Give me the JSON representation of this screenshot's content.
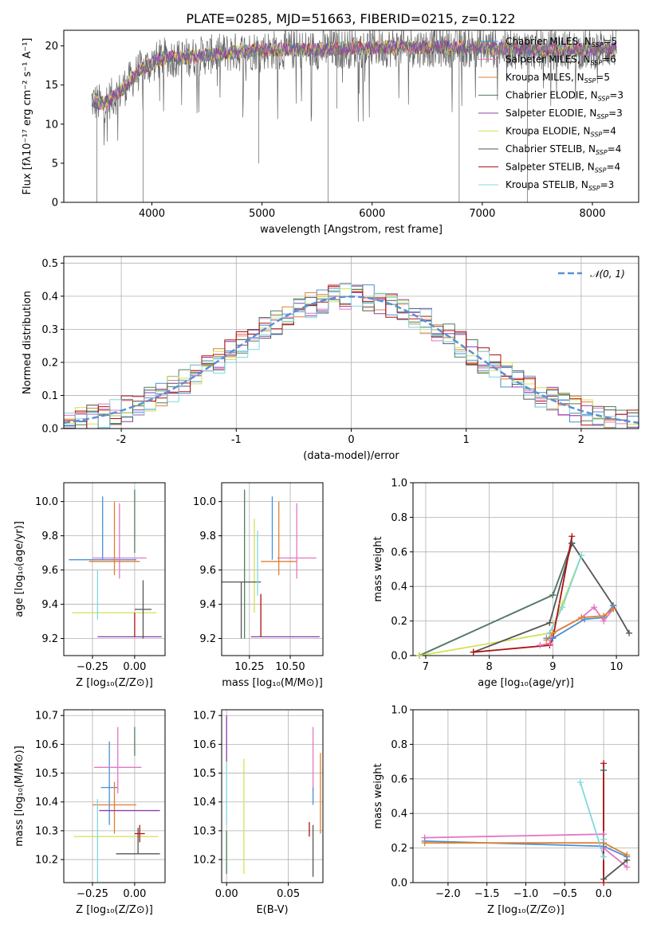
{
  "title": "PLATE=0285, MJD=51663, FIBERID=0215, z=0.122",
  "colors": {
    "chabrier_miles": "#4a90d9",
    "salpeter_miles": "#e377c2",
    "kroupa_miles": "#e08030",
    "chabrier_elodie": "#4f7f5f",
    "salpeter_elodie": "#8e3fa8",
    "kroupa_elodie": "#d4e157",
    "chabrier_stelib": "#555555",
    "salpeter_stelib": "#b01010",
    "kroupa_stelib": "#7fd8e0",
    "normal": "#5b8fd6"
  },
  "chart_data": [
    {
      "id": "spectrum",
      "type": "line",
      "xlabel": "wavelength [Angstrom, rest frame]",
      "ylabel": "Flux [fλ10⁻¹⁷ erg cm⁻² s⁻¹ A⁻¹]",
      "xlim": [
        3200,
        8420
      ],
      "ylim": [
        0,
        22
      ],
      "xticks": [
        4000,
        5000,
        6000,
        7000,
        8000
      ],
      "yticks": [
        0,
        5,
        10,
        15,
        20
      ],
      "grid": false,
      "legend_position": "right",
      "legend": [
        {
          "label": "Chabrier MILES, N",
          "sub": "SSP",
          "eq": "=5",
          "color_key": "chabrier_miles"
        },
        {
          "label": "Salpeter MILES, N",
          "sub": "SSP",
          "eq": "=6",
          "color_key": "salpeter_miles"
        },
        {
          "label": "Kroupa MILES, N",
          "sub": "SSP",
          "eq": "=5",
          "color_key": "kroupa_miles"
        },
        {
          "label": "Chabrier ELODIE, N",
          "sub": "SSP",
          "eq": "=3",
          "color_key": "chabrier_elodie"
        },
        {
          "label": "Salpeter ELODIE, N",
          "sub": "SSP",
          "eq": "=3",
          "color_key": "salpeter_elodie"
        },
        {
          "label": "Kroupa ELODIE, N",
          "sub": "SSP",
          "eq": "=4",
          "color_key": "kroupa_elodie"
        },
        {
          "label": "Chabrier STELIB, N",
          "sub": "SSP",
          "eq": "=4",
          "color_key": "chabrier_stelib"
        },
        {
          "label": "Salpeter STELIB, N",
          "sub": "SSP",
          "eq": "=4",
          "color_key": "salpeter_stelib"
        },
        {
          "label": "Kroupa STELIB, N",
          "sub": "SSP",
          "eq": "=3",
          "color_key": "kroupa_stelib"
        }
      ],
      "continuum": {
        "x": [
          3450,
          3550,
          3700,
          3900,
          4100,
          4300,
          4600,
          5000,
          5500,
          6000,
          6500,
          7000,
          7500,
          8000,
          8200
        ],
        "y": [
          13,
          12.5,
          14,
          17,
          18.5,
          18.5,
          19,
          19.5,
          19.5,
          19.8,
          19.8,
          19.8,
          19.5,
          19.5,
          19.8
        ]
      },
      "drops": [
        {
          "x": 3500,
          "y": 0
        },
        {
          "x": 3920,
          "y": 0
        },
        {
          "x": 4970,
          "y": 5
        },
        {
          "x": 5600,
          "y": 0
        },
        {
          "x": 5680,
          "y": 12
        },
        {
          "x": 6790,
          "y": 0
        },
        {
          "x": 7410,
          "y": 0
        }
      ]
    },
    {
      "id": "residuals",
      "type": "histogram",
      "xlabel": "(data-model)/error",
      "ylabel": "Normed distribution",
      "xlim": [
        -2.5,
        2.5
      ],
      "ylim": [
        0,
        0.52
      ],
      "xticks": [
        -2,
        -1,
        0,
        1,
        2
      ],
      "yticks": [
        0.0,
        0.1,
        0.2,
        0.3,
        0.4,
        0.5
      ],
      "grid": true,
      "legend_position": "upper right",
      "normal_label": "𝒩(0, 1)",
      "bin_width": 0.1
    },
    {
      "id": "age_vs_Z",
      "type": "errorbar",
      "xlabel": "Z [log₁₀(Z/Z⊙)]",
      "ylabel": "age  [log₁₀(age/yr)]",
      "xlim": [
        -0.42,
        0.18
      ],
      "ylim": [
        9.1,
        10.11
      ],
      "xticks": [
        -0.25,
        0.0
      ],
      "xticklabels": [
        "−0.25",
        "0.00"
      ],
      "yticks": [
        9.2,
        9.4,
        9.6,
        9.8,
        10.0
      ],
      "grid": true,
      "points": [
        {
          "c": "chabrier_miles",
          "x": -0.19,
          "xerr": 0.2,
          "y": 9.66,
          "yerr": [
            0.0,
            0.37
          ]
        },
        {
          "c": "salpeter_miles",
          "x": -0.09,
          "xerr": 0.16,
          "y": 9.67,
          "yerr": [
            0.12,
            0.32
          ]
        },
        {
          "c": "kroupa_miles",
          "x": -0.12,
          "xerr": 0.15,
          "y": 9.65,
          "yerr": [
            0.08,
            0.35
          ]
        },
        {
          "c": "chabrier_elodie",
          "x": 0.0,
          "xerr": 0.0,
          "y": 9.8,
          "yerr": [
            0.1,
            0.27
          ]
        },
        {
          "c": "salpeter_elodie",
          "x": -0.03,
          "xerr": 0.19,
          "y": 9.21,
          "yerr": [
            0.0,
            0.0
          ]
        },
        {
          "c": "kroupa_elodie",
          "x": -0.12,
          "xerr": 0.25,
          "y": 9.35,
          "yerr": [
            0.0,
            0.0
          ]
        },
        {
          "c": "chabrier_stelib",
          "x": 0.05,
          "xerr": 0.05,
          "y": 9.37,
          "yerr": [
            0.17,
            0.17
          ]
        },
        {
          "c": "salpeter_stelib",
          "x": 0.0,
          "xerr": 0.0,
          "y": 9.22,
          "yerr": [
            0.01,
            0.13
          ]
        },
        {
          "c": "kroupa_stelib",
          "x": -0.22,
          "xerr": 0.0,
          "y": 9.6,
          "yerr": [
            0.29,
            0.0
          ]
        }
      ]
    },
    {
      "id": "age_vs_mass",
      "type": "errorbar",
      "xlabel": "mass [log₁₀(M/M⊙)]",
      "ylabel": "",
      "xlim": [
        10.08,
        10.7
      ],
      "ylim": [
        9.1,
        10.11
      ],
      "xticks": [
        10.25,
        10.5
      ],
      "xticklabels": [
        "10.25",
        "10.50"
      ],
      "yticks": [
        9.2,
        9.4,
        9.6,
        9.8,
        10.0
      ],
      "grid": true,
      "points": [
        {
          "c": "chabrier_miles",
          "x": 10.39,
          "xerr": 0.0,
          "y": 9.66,
          "yerr": [
            0.0,
            0.37
          ]
        },
        {
          "c": "salpeter_miles",
          "x": 10.54,
          "xerr": 0.12,
          "y": 9.67,
          "yerr": [
            0.12,
            0.32
          ]
        },
        {
          "c": "kroupa_miles",
          "x": 10.43,
          "xerr": 0.11,
          "y": 9.65,
          "yerr": [
            0.08,
            0.35
          ]
        },
        {
          "c": "chabrier_elodie",
          "x": 10.22,
          "xerr": 0.0,
          "y": 9.8,
          "yerr": [
            0.6,
            0.27
          ]
        },
        {
          "c": "salpeter_elodie",
          "x": 10.47,
          "xerr": 0.21,
          "y": 9.21,
          "yerr": [
            0.0,
            0.0
          ]
        },
        {
          "c": "kroupa_elodie",
          "x": 10.28,
          "xerr": 0.0,
          "y": 9.35,
          "yerr": [
            0.0,
            0.55
          ]
        },
        {
          "c": "chabrier_stelib",
          "x": 10.2,
          "xerr": 0.12,
          "y": 9.53,
          "yerr": [
            0.33,
            0.0
          ]
        },
        {
          "c": "salpeter_stelib",
          "x": 10.32,
          "xerr": 0.0,
          "y": 9.21,
          "yerr": [
            0.0,
            0.25
          ]
        },
        {
          "c": "kroupa_stelib",
          "x": 10.3,
          "xerr": 0.0,
          "y": 9.7,
          "yerr": [
            0.25,
            0.13
          ]
        }
      ]
    },
    {
      "id": "weight_vs_age",
      "type": "line",
      "xlabel": "age  [log₁₀(age/yr)]",
      "ylabel": "mass weight",
      "xlim": [
        6.8,
        10.35
      ],
      "ylim": [
        0,
        1.0
      ],
      "xticks": [
        7,
        8,
        9,
        10
      ],
      "yticks": [
        0.0,
        0.2,
        0.4,
        0.6,
        0.8,
        1.0
      ],
      "grid": true,
      "series": [
        {
          "c": "salpeter_elodie",
          "x": [
            6.9,
            9.0,
            9.3
          ],
          "y": [
            0.0,
            0.35,
            0.65
          ]
        },
        {
          "c": "chabrier_elodie",
          "x": [
            6.9,
            9.0,
            9.3
          ],
          "y": [
            0.0,
            0.35,
            0.65
          ]
        },
        {
          "c": "kroupa_elodie",
          "x": [
            6.9,
            8.95,
            9.15,
            9.45
          ],
          "y": [
            0.0,
            0.13,
            0.3,
            0.58
          ]
        },
        {
          "c": "kroupa_stelib",
          "x": [
            8.95,
            9.15,
            9.45
          ],
          "y": [
            0.13,
            0.28,
            0.58
          ]
        },
        {
          "c": "chabrier_stelib",
          "x": [
            7.75,
            8.95,
            9.3,
            9.95,
            10.2
          ],
          "y": [
            0.02,
            0.19,
            0.65,
            0.29,
            0.13
          ]
        },
        {
          "c": "salpeter_stelib",
          "x": [
            7.75,
            8.95,
            9.0,
            9.3
          ],
          "y": [
            0.02,
            0.06,
            0.1,
            0.69
          ]
        },
        {
          "c": "chabrier_miles",
          "x": [
            8.9,
            9.0,
            9.5,
            9.8,
            9.95
          ],
          "y": [
            0.1,
            0.1,
            0.21,
            0.22,
            0.29
          ]
        },
        {
          "c": "salpeter_miles",
          "x": [
            8.8,
            8.95,
            9.0,
            9.45,
            9.65,
            9.8,
            9.95
          ],
          "y": [
            0.06,
            0.07,
            0.13,
            0.22,
            0.28,
            0.2,
            0.27
          ]
        },
        {
          "c": "kroupa_miles",
          "x": [
            8.9,
            9.0,
            9.45,
            9.8,
            9.95
          ],
          "y": [
            0.09,
            0.13,
            0.22,
            0.23,
            0.27
          ]
        }
      ]
    },
    {
      "id": "mass_vs_Z",
      "type": "errorbar",
      "xlabel": "Z [log₁₀(Z/Z⊙)]",
      "ylabel": "mass [log₁₀(M/M⊙)]",
      "xlim": [
        -0.42,
        0.18
      ],
      "ylim": [
        10.12,
        10.72
      ],
      "xticks": [
        -0.25,
        0.0
      ],
      "xticklabels": [
        "−0.25",
        "0.00"
      ],
      "yticks": [
        10.2,
        10.3,
        10.4,
        10.5,
        10.6,
        10.7
      ],
      "grid": true,
      "points": [
        {
          "c": "chabrier_miles",
          "x": -0.15,
          "xerr": 0.05,
          "y": 10.45,
          "yerr": [
            0.13,
            0.16
          ]
        },
        {
          "c": "salpeter_miles",
          "x": -0.1,
          "xerr": 0.14,
          "y": 10.52,
          "yerr": [
            0.09,
            0.14
          ]
        },
        {
          "c": "kroupa_miles",
          "x": -0.12,
          "xerr": 0.13,
          "y": 10.39,
          "yerr": [
            0.1,
            0.08
          ]
        },
        {
          "c": "chabrier_elodie",
          "x": 0.0,
          "xerr": 0.0,
          "y": 10.61,
          "yerr": [
            0.05,
            0.05
          ]
        },
        {
          "c": "salpeter_elodie",
          "x": -0.03,
          "xerr": 0.18,
          "y": 10.37,
          "yerr": [
            0.0,
            0.0
          ]
        },
        {
          "c": "kroupa_elodie",
          "x": -0.11,
          "xerr": 0.25,
          "y": 10.28,
          "yerr": [
            0.0,
            0.0
          ]
        },
        {
          "c": "chabrier_stelib",
          "x": 0.02,
          "xerr": 0.13,
          "y": 10.22,
          "yerr": [
            0.0,
            0.09
          ]
        },
        {
          "c": "salpeter_stelib",
          "x": 0.03,
          "xerr": 0.03,
          "y": 10.29,
          "yerr": [
            0.03,
            0.03
          ]
        },
        {
          "c": "kroupa_stelib",
          "x": -0.22,
          "xerr": 0.0,
          "y": 10.36,
          "yerr": [
            0.24,
            0.05
          ]
        }
      ]
    },
    {
      "id": "mass_vs_EBV",
      "type": "errorbar",
      "xlabel": "E(B-V)",
      "ylabel": "",
      "xlim": [
        -0.004,
        0.078
      ],
      "ylim": [
        10.12,
        10.72
      ],
      "xticks": [
        0.0,
        0.05
      ],
      "xticklabels": [
        "0.00",
        "0.05"
      ],
      "yticks": [
        10.2,
        10.3,
        10.4,
        10.5,
        10.6,
        10.7
      ],
      "grid": true,
      "points": [
        {
          "c": "salpeter_elodie",
          "x": 0.0,
          "xerr": 0.0,
          "y": 10.6,
          "yerr": [
            0.06,
            0.1
          ]
        },
        {
          "c": "chabrier_elodie",
          "x": 0.0,
          "xerr": 0.0,
          "y": 10.2,
          "yerr": [
            0.05,
            0.1
          ]
        },
        {
          "c": "kroupa_stelib",
          "x": 0.0,
          "xerr": 0.0,
          "y": 10.4,
          "yerr": [
            0.08,
            0.14
          ]
        },
        {
          "c": "kroupa_elodie",
          "x": 0.014,
          "xerr": 0.0,
          "y": 10.35,
          "yerr": [
            0.2,
            0.2
          ]
        },
        {
          "c": "salpeter_stelib",
          "x": 0.067,
          "xerr": 0.0,
          "y": 10.3,
          "yerr": [
            0.02,
            0.03
          ]
        },
        {
          "c": "salpeter_miles",
          "x": 0.07,
          "xerr": 0.0,
          "y": 10.52,
          "yerr": [
            0.09,
            0.14
          ]
        },
        {
          "c": "chabrier_miles",
          "x": 0.07,
          "xerr": 0.0,
          "y": 10.41,
          "yerr": [
            0.02,
            0.04
          ]
        },
        {
          "c": "chabrier_stelib",
          "x": 0.07,
          "xerr": 0.0,
          "y": 10.22,
          "yerr": [
            0.08,
            0.1
          ]
        },
        {
          "c": "kroupa_miles",
          "x": 0.076,
          "xerr": 0.0,
          "y": 10.43,
          "yerr": [
            0.14,
            0.14
          ]
        }
      ]
    },
    {
      "id": "weight_vs_Z",
      "type": "line",
      "xlabel": "Z [log₁₀(Z/Z⊙)]",
      "ylabel": "mass weight",
      "xlim": [
        -2.45,
        0.45
      ],
      "ylim": [
        0,
        1.0
      ],
      "xticks": [
        -2.0,
        -1.5,
        -1.0,
        -0.5,
        0.0
      ],
      "xticklabels": [
        "−2.0",
        "−1.5",
        "−1.0",
        "−0.5",
        "0.0"
      ],
      "yticks": [
        0.0,
        0.2,
        0.4,
        0.6,
        0.8,
        1.0
      ],
      "grid": true,
      "series": [
        {
          "c": "salpeter_miles",
          "x": [
            -2.3,
            0.0,
            0.0,
            0.3
          ],
          "y": [
            0.26,
            0.28,
            0.2,
            0.09
          ]
        },
        {
          "c": "chabrier_miles",
          "x": [
            -2.3,
            0.0,
            0.3
          ],
          "y": [
            0.24,
            0.21,
            0.15
          ]
        },
        {
          "c": "kroupa_miles",
          "x": [
            -2.3,
            0.0,
            0.3
          ],
          "y": [
            0.23,
            0.23,
            0.16
          ]
        },
        {
          "c": "kroupa_stelib",
          "x": [
            -0.3,
            0.0,
            0.0
          ],
          "y": [
            0.58,
            0.15,
            0.25
          ]
        },
        {
          "c": "chabrier_stelib",
          "x": [
            0.0,
            0.0,
            0.3
          ],
          "y": [
            0.65,
            0.02,
            0.13
          ]
        },
        {
          "c": "salpeter_stelib",
          "x": [
            0.0,
            0.0
          ],
          "y": [
            0.0,
            0.69
          ]
        }
      ]
    }
  ]
}
